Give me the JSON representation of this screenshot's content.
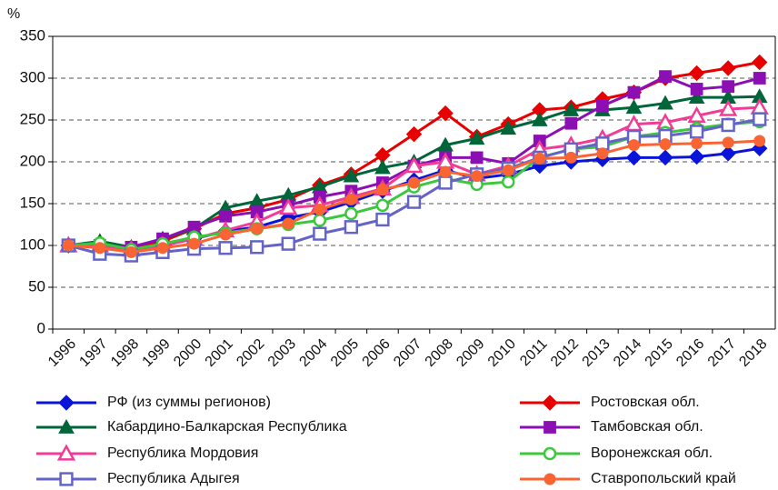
{
  "chart_data": {
    "type": "line",
    "y_label": "%",
    "categories": [
      "1996",
      "1997",
      "1998",
      "1999",
      "2000",
      "2001",
      "2002",
      "2003",
      "2004",
      "2005",
      "2006",
      "2007",
      "2008",
      "2009",
      "2010",
      "2011",
      "2012",
      "2013",
      "2014",
      "2015",
      "2016",
      "2017",
      "2018"
    ],
    "ylim": [
      0,
      350
    ],
    "yticks": [
      0,
      50,
      100,
      150,
      200,
      250,
      300,
      350
    ],
    "grid": true,
    "series": [
      {
        "name": "РФ (из суммы регионов)",
        "color": "#0a14d8",
        "marker": "diamond",
        "filled": true,
        "values": [
          100,
          100,
          95,
          100,
          108,
          117,
          122,
          133,
          140,
          152,
          165,
          178,
          190,
          180,
          185,
          195,
          200,
          203,
          205,
          205,
          206,
          210,
          216
        ]
      },
      {
        "name": "Ростовская обл.",
        "color": "#e60000",
        "marker": "diamond",
        "filled": true,
        "values": [
          100,
          102,
          97,
          105,
          120,
          138,
          145,
          155,
          172,
          185,
          208,
          233,
          258,
          230,
          245,
          262,
          265,
          275,
          283,
          300,
          306,
          312,
          319
        ]
      },
      {
        "name": "Кабардино-Балкарская Республика",
        "color": "#00663a",
        "marker": "triangle",
        "filled": true,
        "values": [
          100,
          105,
          98,
          108,
          120,
          145,
          153,
          160,
          170,
          183,
          193,
          200,
          220,
          228,
          240,
          250,
          262,
          262,
          265,
          270,
          277,
          277,
          278
        ]
      },
      {
        "name": "Тамбовская обл.",
        "color": "#8c0fb4",
        "marker": "square",
        "filled": true,
        "values": [
          100,
          100,
          98,
          108,
          122,
          135,
          140,
          148,
          158,
          165,
          175,
          195,
          205,
          205,
          198,
          225,
          246,
          267,
          283,
          302,
          287,
          290,
          300
        ]
      },
      {
        "name": "Республика Мордовия",
        "color": "#f03c96",
        "marker": "triangle",
        "filled": false,
        "values": [
          100,
          100,
          95,
          100,
          108,
          118,
          128,
          145,
          148,
          158,
          168,
          195,
          200,
          185,
          195,
          215,
          220,
          228,
          245,
          247,
          255,
          263,
          265
        ]
      },
      {
        "name": "Воронежская обл.",
        "color": "#3cc83c",
        "marker": "circle",
        "filled": false,
        "values": [
          100,
          103,
          95,
          102,
          110,
          115,
          120,
          125,
          130,
          138,
          148,
          170,
          180,
          173,
          176,
          205,
          215,
          218,
          230,
          235,
          240,
          245,
          248
        ]
      },
      {
        "name": "Республика Адыгея",
        "color": "#6464c8",
        "marker": "square",
        "filled": false,
        "values": [
          100,
          90,
          88,
          92,
          96,
          97,
          98,
          102,
          114,
          122,
          131,
          152,
          175,
          185,
          192,
          205,
          215,
          222,
          230,
          231,
          236,
          244,
          251
        ]
      },
      {
        "name": "Ставропольский край",
        "color": "#fa6432",
        "marker": "circle",
        "filled": true,
        "values": [
          100,
          97,
          92,
          97,
          102,
          113,
          120,
          126,
          143,
          155,
          167,
          175,
          188,
          183,
          190,
          204,
          205,
          210,
          220,
          221,
          222,
          223,
          225
        ]
      }
    ]
  }
}
